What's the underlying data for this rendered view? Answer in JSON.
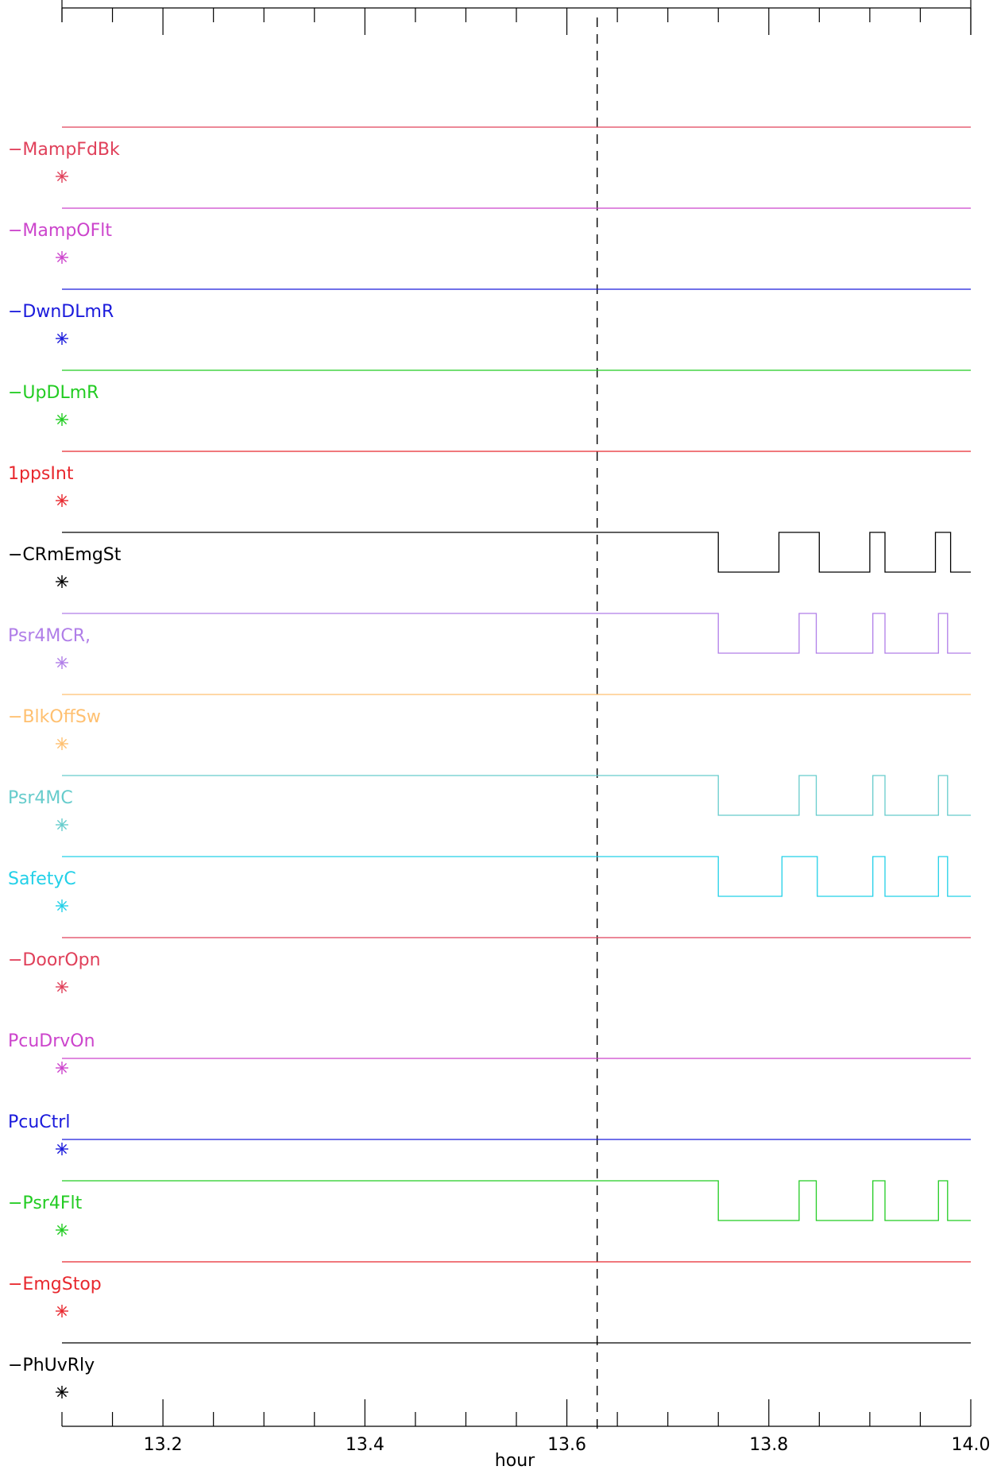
{
  "chart_data": {
    "type": "line",
    "title": "",
    "xlabel": "hour",
    "ylabel": "",
    "xlim": [
      13.1,
      14.0
    ],
    "x_ticks": [
      "13.2",
      "13.4",
      "13.6",
      "13.8",
      "14.0"
    ],
    "x_tick_values": [
      13.2,
      13.4,
      13.6,
      13.8,
      14.0
    ],
    "x_minor_step": 0.05,
    "x_cursor": 13.63,
    "grid": false,
    "colors": {
      "axis": "#000000",
      "cursor": "#000000"
    },
    "series": [
      {
        "name": "−MampFdBk",
        "color": "#e0405a",
        "label_color": "#e0405a",
        "transitions": [
          [
            13.1,
            1
          ]
        ]
      },
      {
        "name": "−MampOFlt",
        "color": "#cc44cc",
        "label_color": "#cc44cc",
        "transitions": [
          [
            13.1,
            1
          ]
        ]
      },
      {
        "name": "−DwnDLmR",
        "color": "#1a1adc",
        "label_color": "#1a1adc",
        "transitions": [
          [
            13.1,
            1
          ]
        ]
      },
      {
        "name": "−UpDLmR",
        "color": "#22cc22",
        "label_color": "#22cc22",
        "transitions": [
          [
            13.1,
            1
          ]
        ]
      },
      {
        "name": "1ppsInt",
        "color": "#e8282e",
        "label_color": "#e8282e",
        "transitions": [
          [
            13.1,
            1
          ]
        ]
      },
      {
        "name": "−CRmEmgSt",
        "color": "#000000",
        "label_color": "#000000",
        "transitions": [
          [
            13.1,
            1
          ],
          [
            13.75,
            0
          ],
          [
            13.81,
            1
          ],
          [
            13.85,
            0
          ],
          [
            13.9,
            1
          ],
          [
            13.915,
            0
          ],
          [
            13.965,
            1
          ],
          [
            13.98,
            0
          ]
        ]
      },
      {
        "name": "Psr4MCR,",
        "color": "#b07ee8",
        "label_color": "#b07ee8",
        "transitions": [
          [
            13.1,
            1
          ],
          [
            13.75,
            0
          ],
          [
            13.83,
            1
          ],
          [
            13.847,
            0
          ],
          [
            13.903,
            1
          ],
          [
            13.915,
            0
          ],
          [
            13.968,
            1
          ],
          [
            13.977,
            0
          ]
        ]
      },
      {
        "name": "−BlkOffSw",
        "color": "#ffc070",
        "label_color": "#ffc070",
        "transitions": [
          [
            13.1,
            1
          ]
        ]
      },
      {
        "name": "Psr4MC",
        "color": "#66cccc",
        "label_color": "#66cccc",
        "transitions": [
          [
            13.1,
            1
          ],
          [
            13.75,
            0
          ],
          [
            13.83,
            1
          ],
          [
            13.847,
            0
          ],
          [
            13.903,
            1
          ],
          [
            13.915,
            0
          ],
          [
            13.968,
            1
          ],
          [
            13.977,
            0
          ]
        ]
      },
      {
        "name": "SafetyC",
        "color": "#22d0e8",
        "label_color": "#22d0e8",
        "transitions": [
          [
            13.1,
            1
          ],
          [
            13.75,
            0
          ],
          [
            13.813,
            1
          ],
          [
            13.848,
            0
          ],
          [
            13.903,
            1
          ],
          [
            13.915,
            0
          ],
          [
            13.968,
            1
          ],
          [
            13.977,
            0
          ]
        ]
      },
      {
        "name": "−DoorOpn",
        "color": "#e0405a",
        "label_color": "#e0405a",
        "transitions": [
          [
            13.1,
            1
          ]
        ]
      },
      {
        "name": "PcuDrvOn",
        "color": "#cc44cc",
        "label_color": "#cc44cc",
        "transitions": [
          [
            13.1,
            0
          ]
        ]
      },
      {
        "name": "PcuCtrl",
        "color": "#1a1adc",
        "label_color": "#1a1adc",
        "transitions": [
          [
            13.1,
            0
          ]
        ]
      },
      {
        "name": "−Psr4Flt",
        "color": "#22cc22",
        "label_color": "#22cc22",
        "transitions": [
          [
            13.1,
            1
          ],
          [
            13.75,
            0
          ],
          [
            13.83,
            1
          ],
          [
            13.847,
            0
          ],
          [
            13.903,
            1
          ],
          [
            13.915,
            0
          ],
          [
            13.968,
            1
          ],
          [
            13.977,
            0
          ]
        ]
      },
      {
        "name": "−EmgStop",
        "color": "#e8282e",
        "label_color": "#e8282e",
        "transitions": [
          [
            13.1,
            1
          ]
        ]
      },
      {
        "name": "−PhUvRly",
        "color": "#000000",
        "label_color": "#000000",
        "transitions": [
          [
            13.1,
            1
          ]
        ]
      }
    ]
  }
}
